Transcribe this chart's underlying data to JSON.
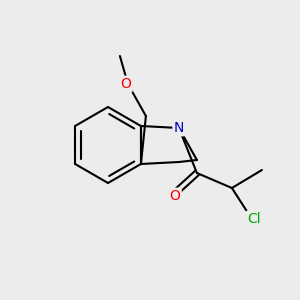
{
  "background_color": "#ececec",
  "bond_color": "#000000",
  "bond_width": 1.5,
  "atom_colors": {
    "N": "#0000cc",
    "O_carbonyl": "#ff0000",
    "O_ether": "#ff0000",
    "Cl": "#00aa00"
  },
  "font_size_atoms": 9,
  "font_size_small": 8
}
